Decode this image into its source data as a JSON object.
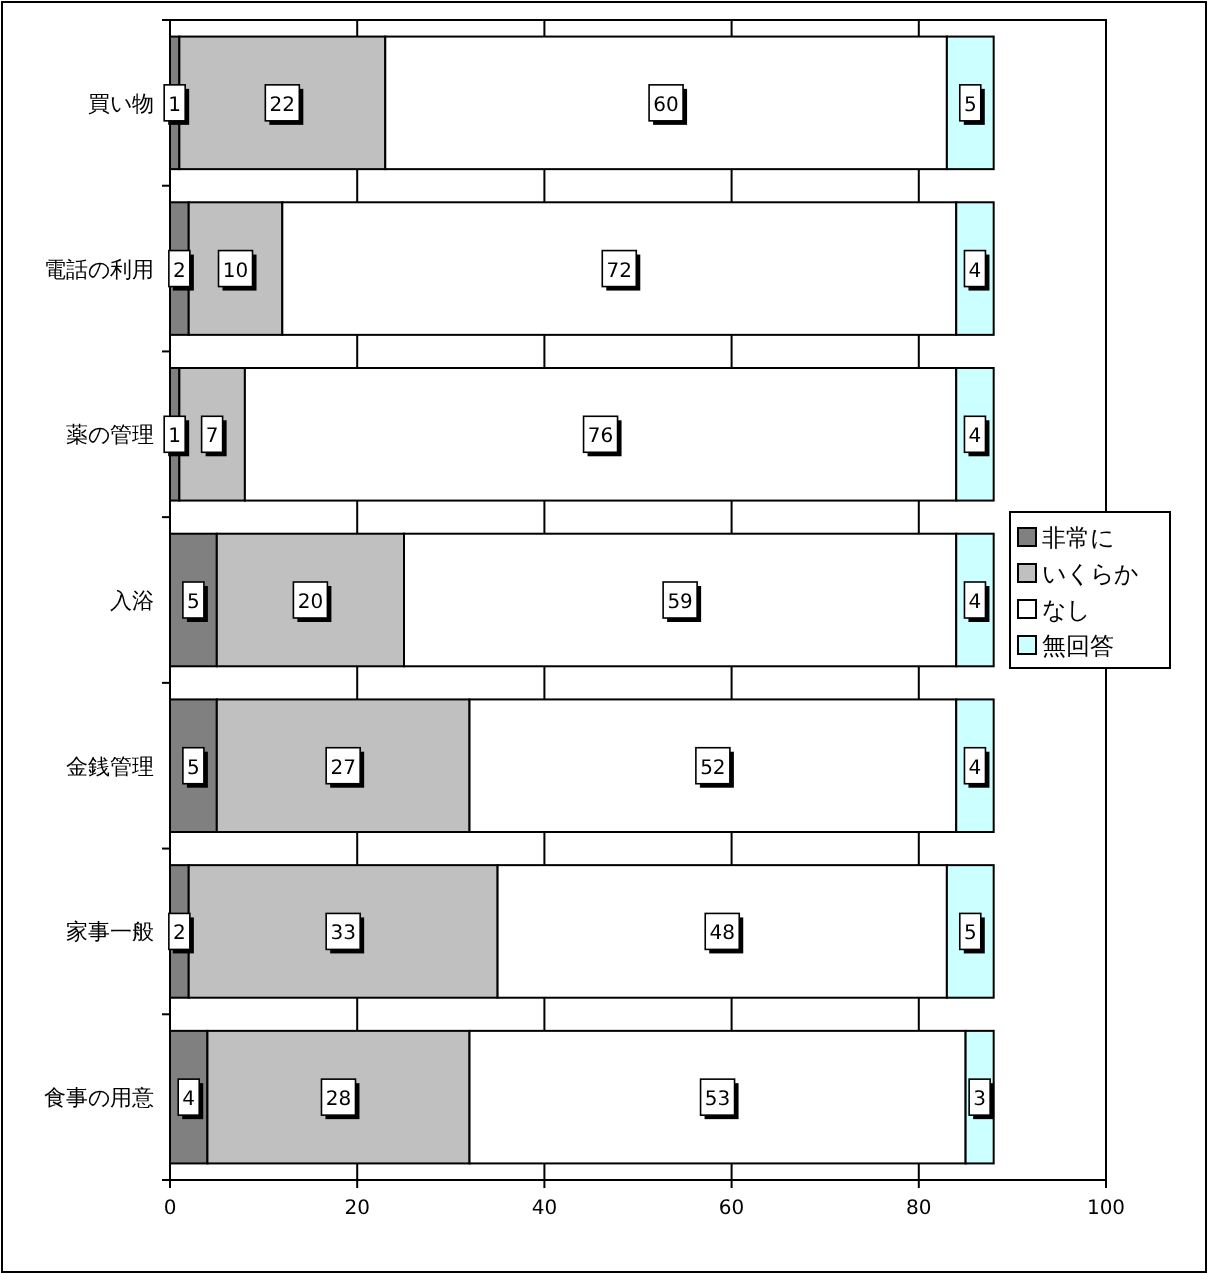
{
  "chart_data": {
    "type": "bar",
    "orientation": "horizontal",
    "stacked": true,
    "categories": [
      "買い物",
      "電話の利用",
      "薬の管理",
      "入浴",
      "金銭管理",
      "家事一般",
      "食事の用意"
    ],
    "series": [
      {
        "name": "非常に",
        "color": "#808080",
        "values": [
          1,
          2,
          1,
          5,
          5,
          2,
          4
        ]
      },
      {
        "name": "いくらか",
        "color": "#c0c0c0",
        "values": [
          22,
          10,
          7,
          20,
          27,
          33,
          28
        ]
      },
      {
        "name": "なし",
        "color": "#ffffff",
        "values": [
          60,
          72,
          76,
          59,
          52,
          48,
          53
        ]
      },
      {
        "name": "無回答",
        "color": "#ccffff",
        "values": [
          5,
          4,
          4,
          4,
          4,
          5,
          3
        ]
      }
    ],
    "xlim": [
      0,
      100
    ],
    "xticks": [
      0,
      20,
      40,
      60,
      80,
      100
    ],
    "grid": "x",
    "legend": "right",
    "data_labels": true
  }
}
